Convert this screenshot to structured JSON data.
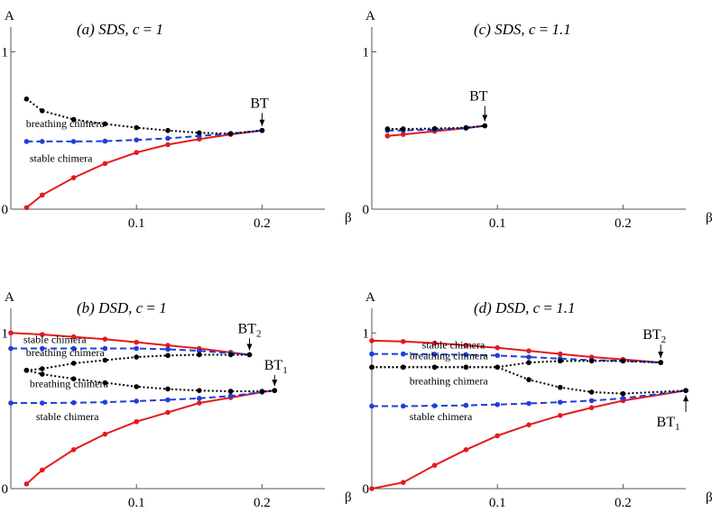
{
  "colors": {
    "stable": "#e41a1c",
    "breathing_unstable": "#1f3fd8",
    "unstable": "#000000"
  },
  "chart_data": [
    {
      "id": "a",
      "type": "line",
      "title": "(a) SDS, c = 1",
      "ylabel": "A",
      "xlabel": "β",
      "xlim": [
        0,
        0.25
      ],
      "ylim": [
        0,
        1.1
      ],
      "xticks": [
        {
          "v": 0.1,
          "label": "0.1"
        },
        {
          "v": 0.2,
          "label": "0.2"
        }
      ],
      "yticks": [
        {
          "v": 0,
          "label": "0"
        },
        {
          "v": 1,
          "label": "1"
        }
      ],
      "annotations": [
        {
          "text": "breathing chimera",
          "x": 0.012,
          "y": 0.52
        },
        {
          "text": "stable chimera",
          "x": 0.015,
          "y": 0.3
        }
      ],
      "bt": [
        {
          "base": "BT",
          "sub": "",
          "x": 0.2,
          "y": 0.5,
          "label_x": 0.198,
          "label_y": 0.645
        }
      ],
      "series": [
        {
          "style": "solid",
          "color": "#e41a1c",
          "x": [
            0.0125,
            0.025,
            0.05,
            0.075,
            0.1,
            0.125,
            0.15,
            0.175,
            0.2
          ],
          "y": [
            0.01,
            0.09,
            0.2,
            0.29,
            0.36,
            0.41,
            0.445,
            0.475,
            0.5
          ]
        },
        {
          "style": "dashed",
          "color": "#1f3fd8",
          "x": [
            0.0125,
            0.025,
            0.05,
            0.075,
            0.1,
            0.125,
            0.15,
            0.175,
            0.2
          ],
          "y": [
            0.43,
            0.43,
            0.43,
            0.432,
            0.44,
            0.45,
            0.465,
            0.48,
            0.5
          ]
        },
        {
          "style": "dotted",
          "color": "#000000",
          "x": [
            0.0125,
            0.025,
            0.05,
            0.075,
            0.1,
            0.125,
            0.15,
            0.175,
            0.2
          ],
          "y": [
            0.7,
            0.625,
            0.57,
            0.542,
            0.518,
            0.5,
            0.485,
            0.48,
            0.5
          ]
        }
      ]
    },
    {
      "id": "c",
      "type": "line",
      "title": "(c) SDS, c = 1.1",
      "ylabel": "A",
      "xlabel": "β",
      "xlim": [
        0,
        0.25
      ],
      "ylim": [
        0,
        1.1
      ],
      "xticks": [
        {
          "v": 0.1,
          "label": "0.1"
        },
        {
          "v": 0.2,
          "label": "0.2"
        }
      ],
      "yticks": [
        {
          "v": 0,
          "label": "0"
        },
        {
          "v": 1,
          "label": "1"
        }
      ],
      "annotations": [],
      "bt": [
        {
          "base": "BT",
          "sub": "",
          "x": 0.09,
          "y": 0.53,
          "label_x": 0.085,
          "label_y": 0.69
        }
      ],
      "series": [
        {
          "style": "solid",
          "color": "#e41a1c",
          "x": [
            0.0125,
            0.025,
            0.05,
            0.075,
            0.09
          ],
          "y": [
            0.465,
            0.475,
            0.495,
            0.515,
            0.53
          ]
        },
        {
          "style": "dashed",
          "color": "#1f3fd8",
          "x": [
            0.0125,
            0.025,
            0.05,
            0.075,
            0.09
          ],
          "y": [
            0.5,
            0.5,
            0.505,
            0.515,
            0.53
          ]
        },
        {
          "style": "dotted",
          "color": "#000000",
          "x": [
            0.0125,
            0.025,
            0.05,
            0.075,
            0.09
          ],
          "y": [
            0.51,
            0.51,
            0.512,
            0.518,
            0.53
          ]
        }
      ]
    },
    {
      "id": "b",
      "type": "line",
      "title": "(b) DSD, c = 1",
      "ylabel": "A",
      "xlabel": "β",
      "xlim": [
        0,
        0.25
      ],
      "ylim": [
        0,
        1.1
      ],
      "xticks": [
        {
          "v": 0.1,
          "label": "0.1"
        },
        {
          "v": 0.2,
          "label": "0.2"
        }
      ],
      "yticks": [
        {
          "v": 0,
          "label": "0"
        },
        {
          "v": 1,
          "label": "1"
        }
      ],
      "annotations": [
        {
          "text": "stable chimera",
          "x": 0.01,
          "y": 0.935
        },
        {
          "text": "breathing chimera",
          "x": 0.012,
          "y": 0.85
        },
        {
          "text": "breathing chimera",
          "x": 0.015,
          "y": 0.65
        },
        {
          "text": "stable chimera",
          "x": 0.02,
          "y": 0.44
        }
      ],
      "bt": [
        {
          "base": "BT",
          "sub": "2",
          "x": 0.19,
          "y": 0.86,
          "label_x": 0.19,
          "label_y": 1.0
        },
        {
          "base": "BT",
          "sub": "1",
          "x": 0.21,
          "y": 0.63,
          "label_x": 0.211,
          "label_y": 0.765
        }
      ],
      "series": [
        {
          "style": "solid",
          "color": "#e41a1c",
          "x": [
            0,
            0.025,
            0.05,
            0.075,
            0.1,
            0.125,
            0.15,
            0.175,
            0.19
          ],
          "y": [
            1.0,
            0.99,
            0.975,
            0.96,
            0.94,
            0.92,
            0.9,
            0.875,
            0.86
          ]
        },
        {
          "style": "dashed",
          "color": "#1f3fd8",
          "x": [
            0,
            0.025,
            0.05,
            0.075,
            0.1,
            0.125,
            0.15,
            0.175,
            0.19
          ],
          "y": [
            0.9,
            0.9,
            0.9,
            0.9,
            0.9,
            0.895,
            0.885,
            0.87,
            0.86
          ]
        },
        {
          "style": "dotted",
          "color": "#000000",
          "x": [
            0.0125,
            0.025,
            0.05,
            0.075,
            0.1,
            0.125,
            0.15,
            0.175,
            0.19
          ],
          "y": [
            0.76,
            0.77,
            0.805,
            0.825,
            0.845,
            0.855,
            0.86,
            0.86,
            0.86
          ]
        },
        {
          "style": "solid",
          "color": "#e41a1c",
          "x": [
            0.0125,
            0.025,
            0.05,
            0.075,
            0.1,
            0.125,
            0.15,
            0.175,
            0.2,
            0.21
          ],
          "y": [
            0.03,
            0.12,
            0.25,
            0.35,
            0.43,
            0.49,
            0.55,
            0.585,
            0.62,
            0.63
          ]
        },
        {
          "style": "dashed",
          "color": "#1f3fd8",
          "x": [
            0,
            0.025,
            0.05,
            0.075,
            0.1,
            0.125,
            0.15,
            0.175,
            0.2,
            0.21
          ],
          "y": [
            0.55,
            0.55,
            0.552,
            0.555,
            0.562,
            0.57,
            0.58,
            0.595,
            0.62,
            0.63
          ]
        },
        {
          "style": "dotted",
          "color": "#000000",
          "x": [
            0.0125,
            0.025,
            0.05,
            0.075,
            0.1,
            0.125,
            0.15,
            0.175,
            0.2,
            0.21
          ],
          "y": [
            0.76,
            0.735,
            0.705,
            0.68,
            0.655,
            0.64,
            0.63,
            0.625,
            0.625,
            0.63
          ]
        }
      ]
    },
    {
      "id": "d",
      "type": "line",
      "title": "(d) DSD, c = 1.1",
      "ylabel": "A",
      "xlabel": "β",
      "xlim": [
        0,
        0.25
      ],
      "ylim": [
        0,
        1.1
      ],
      "xticks": [
        {
          "v": 0.1,
          "label": "0.1"
        },
        {
          "v": 0.2,
          "label": "0.2"
        }
      ],
      "yticks": [
        {
          "v": 0,
          "label": "0"
        },
        {
          "v": 1,
          "label": "1"
        }
      ],
      "annotations": [
        {
          "text": "stable chimera",
          "x": 0.04,
          "y": 0.9
        },
        {
          "text": "breathing chimera",
          "x": 0.03,
          "y": 0.83
        },
        {
          "text": "breathing chimera",
          "x": 0.03,
          "y": 0.67
        },
        {
          "text": "stable chimera",
          "x": 0.03,
          "y": 0.44
        }
      ],
      "bt": [
        {
          "base": "BT",
          "sub": "2",
          "x": 0.23,
          "y": 0.81,
          "label_x": 0.225,
          "label_y": 0.96
        },
        {
          "base": "BT",
          "sub": "1",
          "x": 0.25,
          "y": 0.63,
          "label_x": 0.236,
          "label_y": 0.4
        }
      ],
      "series": [
        {
          "style": "solid",
          "color": "#e41a1c",
          "x": [
            0,
            0.025,
            0.05,
            0.075,
            0.1,
            0.125,
            0.15,
            0.175,
            0.2,
            0.23
          ],
          "y": [
            0.95,
            0.945,
            0.935,
            0.92,
            0.905,
            0.885,
            0.865,
            0.845,
            0.83,
            0.81
          ]
        },
        {
          "style": "dashed",
          "color": "#1f3fd8",
          "x": [
            0,
            0.025,
            0.05,
            0.075,
            0.1,
            0.125,
            0.15,
            0.175,
            0.2,
            0.23
          ],
          "y": [
            0.865,
            0.865,
            0.863,
            0.86,
            0.855,
            0.845,
            0.835,
            0.825,
            0.82,
            0.81
          ]
        },
        {
          "style": "dotted",
          "color": "#000000",
          "x": [
            0,
            0.025,
            0.05,
            0.075,
            0.1,
            0.125,
            0.15,
            0.175,
            0.2,
            0.23
          ],
          "y": [
            0.78,
            0.78,
            0.78,
            0.78,
            0.78,
            0.81,
            0.82,
            0.82,
            0.82,
            0.81
          ]
        },
        {
          "style": "solid",
          "color": "#e41a1c",
          "x": [
            0,
            0.025,
            0.05,
            0.075,
            0.1,
            0.125,
            0.15,
            0.175,
            0.2,
            0.25
          ],
          "y": [
            0.0,
            0.04,
            0.15,
            0.25,
            0.34,
            0.41,
            0.47,
            0.52,
            0.565,
            0.63
          ]
        },
        {
          "style": "dashed",
          "color": "#1f3fd8",
          "x": [
            0,
            0.025,
            0.05,
            0.075,
            0.1,
            0.125,
            0.15,
            0.175,
            0.2,
            0.25
          ],
          "y": [
            0.53,
            0.53,
            0.532,
            0.535,
            0.54,
            0.547,
            0.555,
            0.565,
            0.58,
            0.63
          ]
        },
        {
          "style": "dotted",
          "color": "#000000",
          "x": [
            0,
            0.025,
            0.05,
            0.075,
            0.1,
            0.125,
            0.15,
            0.175,
            0.2,
            0.25
          ],
          "y": [
            0.78,
            0.78,
            0.78,
            0.78,
            0.78,
            0.7,
            0.65,
            0.62,
            0.61,
            0.63
          ]
        }
      ]
    }
  ]
}
